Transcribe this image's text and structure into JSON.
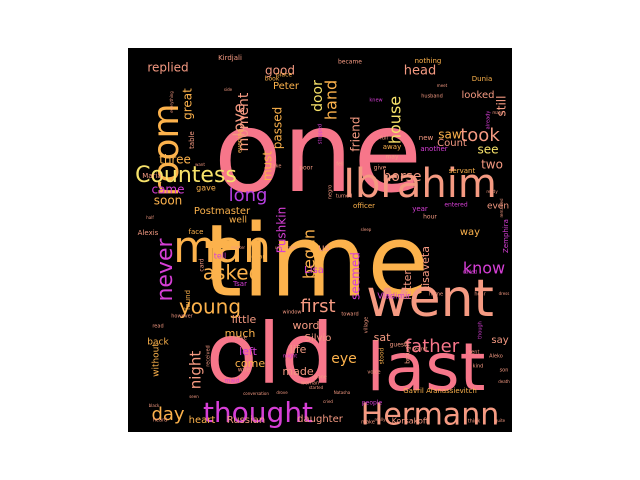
{
  "palette": {
    "background": "#ffffff",
    "panel": "#000000",
    "pink": "#f7768a",
    "orange": "#fcb24c",
    "magenta": "#d63fd6",
    "salmon": "#f59a82",
    "yellow": "#f7e26a",
    "violet": "#b63fe0"
  },
  "words": [
    {
      "text": "one",
      "weight": 100,
      "color": "pink"
    },
    {
      "text": "time",
      "weight": 98,
      "color": "orange"
    },
    {
      "text": "old",
      "weight": 80,
      "color": "pink"
    },
    {
      "text": "last",
      "weight": 62,
      "color": "pink"
    },
    {
      "text": "went",
      "weight": 52,
      "color": "salmon"
    },
    {
      "text": "Ibrahim",
      "weight": 42,
      "color": "salmon"
    },
    {
      "text": "man",
      "weight": 42,
      "color": "orange"
    },
    {
      "text": "Hermann",
      "weight": 34,
      "color": "salmon"
    },
    {
      "text": "room",
      "weight": 32,
      "color": "orange"
    },
    {
      "text": "thought",
      "weight": 28,
      "color": "magenta"
    },
    {
      "text": "Countess",
      "weight": 22,
      "color": "yellow"
    },
    {
      "text": "never",
      "weight": 20,
      "color": "magenta"
    },
    {
      "text": "asked",
      "weight": 20,
      "color": "orange"
    },
    {
      "text": "young",
      "weight": 20,
      "color": "orange"
    },
    {
      "text": "father",
      "weight": 18,
      "color": "pink"
    },
    {
      "text": "long",
      "weight": 18,
      "color": "violet"
    },
    {
      "text": "took",
      "weight": 18,
      "color": "salmon"
    },
    {
      "text": "know",
      "weight": 16,
      "color": "magenta"
    },
    {
      "text": "first",
      "weight": 18,
      "color": "salmon"
    },
    {
      "text": "day",
      "weight": 18,
      "color": "orange"
    },
    {
      "text": "night",
      "weight": 15,
      "color": "salmon"
    },
    {
      "text": "love",
      "weight": 16,
      "color": "salmon"
    },
    {
      "text": "hand",
      "weight": 16,
      "color": "orange"
    },
    {
      "text": "house",
      "weight": 16,
      "color": "yellow"
    },
    {
      "text": "began",
      "weight": 16,
      "color": "orange"
    },
    {
      "text": "moment",
      "weight": 14,
      "color": "salmon"
    },
    {
      "text": "door",
      "weight": 14,
      "color": "yellow"
    },
    {
      "text": "horse",
      "weight": 14,
      "color": "salmon"
    },
    {
      "text": "eye",
      "weight": 14,
      "color": "orange"
    },
    {
      "text": "head",
      "weight": 13,
      "color": "salmon"
    },
    {
      "text": "good",
      "weight": 12,
      "color": "salmon"
    },
    {
      "text": "replied",
      "weight": 12,
      "color": "salmon"
    },
    {
      "text": "great",
      "weight": 12,
      "color": "orange"
    },
    {
      "text": "three",
      "weight": 12,
      "color": "orange"
    },
    {
      "text": "came",
      "weight": 12,
      "color": "magenta"
    },
    {
      "text": "soon",
      "weight": 12,
      "color": "orange"
    },
    {
      "text": "Pushkin",
      "weight": 12,
      "color": "magenta"
    },
    {
      "text": "friend",
      "weight": 12,
      "color": "salmon"
    },
    {
      "text": "passed",
      "weight": 12,
      "color": "orange"
    },
    {
      "text": "must",
      "weight": 12,
      "color": "orange"
    },
    {
      "text": "saw",
      "weight": 12,
      "color": "orange"
    },
    {
      "text": "see",
      "weight": 12,
      "color": "yellow"
    },
    {
      "text": "two",
      "weight": 12,
      "color": "salmon"
    },
    {
      "text": "still",
      "weight": 12,
      "color": "salmon"
    },
    {
      "text": "seemed",
      "weight": 12,
      "color": "magenta"
    },
    {
      "text": "Lisaveta",
      "weight": 11,
      "color": "salmon"
    },
    {
      "text": "letter",
      "weight": 11,
      "color": "salmon"
    },
    {
      "text": "little",
      "weight": 11,
      "color": "salmon"
    },
    {
      "text": "much",
      "weight": 11,
      "color": "orange"
    },
    {
      "text": "word",
      "weight": 11,
      "color": "salmon"
    },
    {
      "text": "left",
      "weight": 11,
      "color": "magenta"
    },
    {
      "text": "life",
      "weight": 11,
      "color": "salmon"
    },
    {
      "text": "come",
      "weight": 11,
      "color": "orange"
    },
    {
      "text": "made",
      "weight": 11,
      "color": "salmon"
    },
    {
      "text": "sat",
      "weight": 11,
      "color": "salmon"
    },
    {
      "text": "say",
      "weight": 10,
      "color": "salmon"
    },
    {
      "text": "Lisa",
      "weight": 10,
      "color": "magenta"
    },
    {
      "text": "Silvio",
      "weight": 10,
      "color": "salmon"
    },
    {
      "text": "Count",
      "weight": 10,
      "color": "salmon"
    },
    {
      "text": "looked",
      "weight": 10,
      "color": "salmon"
    },
    {
      "text": "Peter",
      "weight": 10,
      "color": "orange"
    },
    {
      "text": "Postmaster",
      "weight": 10,
      "color": "orange"
    },
    {
      "text": "Russian",
      "weight": 10,
      "color": "salmon"
    },
    {
      "text": "daughter",
      "weight": 10,
      "color": "salmon"
    },
    {
      "text": "heart",
      "weight": 10,
      "color": "orange"
    },
    {
      "text": "way",
      "weight": 10,
      "color": "orange"
    },
    {
      "text": "us",
      "weight": 10,
      "color": "salmon"
    },
    {
      "text": "even",
      "weight": 9,
      "color": "salmon"
    },
    {
      "text": "without",
      "weight": 9,
      "color": "orange"
    },
    {
      "text": "well",
      "weight": 9,
      "color": "orange"
    },
    {
      "text": "back",
      "weight": 9,
      "color": "orange"
    },
    {
      "text": "Korsakoff",
      "weight": 8,
      "color": "salmon"
    },
    {
      "text": "Gavril Afanassievitch",
      "weight": 7,
      "color": "orange"
    },
    {
      "text": "Vladimir",
      "weight": 8,
      "color": "magenta"
    },
    {
      "text": "Dunia",
      "weight": 7,
      "color": "orange"
    },
    {
      "text": "Kirdjali",
      "weight": 7,
      "color": "salmon"
    },
    {
      "text": "Maria",
      "weight": 7,
      "color": "salmon"
    },
    {
      "text": "Alexis",
      "weight": 7,
      "color": "salmon"
    },
    {
      "text": "Zemphira",
      "weight": 7,
      "color": "magenta"
    },
    {
      "text": "Tsar",
      "weight": 7,
      "color": "magenta"
    },
    {
      "text": "tell",
      "weight": 8,
      "color": "magenta"
    },
    {
      "text": "gave",
      "weight": 8,
      "color": "orange"
    },
    {
      "text": "found",
      "weight": 7,
      "color": "orange"
    },
    {
      "text": "face",
      "weight": 7,
      "color": "orange"
    },
    {
      "text": "card",
      "weight": 6,
      "color": "salmon"
    },
    {
      "text": "dear",
      "weight": 6,
      "color": "orange"
    },
    {
      "text": "new",
      "weight": 7,
      "color": "salmon"
    },
    {
      "text": "another",
      "weight": 7,
      "color": "magenta"
    },
    {
      "text": "nothing",
      "weight": 7,
      "color": "orange"
    },
    {
      "text": "became",
      "weight": 6,
      "color": "salmon"
    },
    {
      "text": "place",
      "weight": 6,
      "color": "orange"
    },
    {
      "text": "book",
      "weight": 6,
      "color": "orange"
    },
    {
      "text": "evening",
      "weight": 6,
      "color": "orange"
    },
    {
      "text": "table",
      "weight": 7,
      "color": "salmon"
    },
    {
      "text": "away",
      "weight": 7,
      "color": "orange"
    },
    {
      "text": "may",
      "weight": 6,
      "color": "salmon"
    },
    {
      "text": "give",
      "weight": 6,
      "color": "salmon"
    },
    {
      "text": "officer",
      "weight": 7,
      "color": "orange"
    },
    {
      "text": "servant",
      "weight": 7,
      "color": "orange"
    },
    {
      "text": "year",
      "weight": 7,
      "color": "magenta"
    },
    {
      "text": "entered",
      "weight": 6,
      "color": "magenta"
    },
    {
      "text": "hour",
      "weight": 6,
      "color": "salmon"
    },
    {
      "text": "poor",
      "weight": 6,
      "color": "salmon"
    },
    {
      "text": "stood",
      "weight": 6,
      "color": "orange"
    },
    {
      "text": "brought",
      "weight": 6,
      "color": "salmon"
    },
    {
      "text": "guest",
      "weight": 6,
      "color": "salmon"
    },
    {
      "text": "wife",
      "weight": 6,
      "color": "salmon"
    },
    {
      "text": "maid",
      "weight": 6,
      "color": "magenta"
    },
    {
      "text": "woman",
      "weight": 5,
      "color": "salmon"
    },
    {
      "text": "voice",
      "weight": 5,
      "color": "salmon"
    },
    {
      "text": "alone",
      "weight": 5,
      "color": "salmon"
    },
    {
      "text": "might",
      "weight": 5,
      "color": "magenta"
    },
    {
      "text": "however",
      "weight": 5,
      "color": "salmon"
    },
    {
      "text": "read",
      "weight": 5,
      "color": "salmon"
    },
    {
      "text": "leave",
      "weight": 5,
      "color": "salmon"
    },
    {
      "text": "received",
      "weight": 5,
      "color": "salmon"
    },
    {
      "text": "window",
      "weight": 5,
      "color": "salmon"
    },
    {
      "text": "toward",
      "weight": 5,
      "color": "salmon"
    },
    {
      "text": "secret",
      "weight": 5,
      "color": "salmon"
    },
    {
      "text": "sent",
      "weight": 5,
      "color": "salmon"
    },
    {
      "text": "kind",
      "weight": 5,
      "color": "salmon"
    },
    {
      "text": "son",
      "weight": 5,
      "color": "salmon"
    },
    {
      "text": "Aleko",
      "weight": 5,
      "color": "salmon"
    },
    {
      "text": "home",
      "weight": 5,
      "color": "salmon"
    },
    {
      "text": "though",
      "weight": 5,
      "color": "magenta"
    },
    {
      "text": "called",
      "weight": 5,
      "color": "magenta"
    },
    {
      "text": "hear",
      "weight": 5,
      "color": "salmon"
    },
    {
      "text": "dress",
      "weight": 4,
      "color": "salmon"
    },
    {
      "text": "people",
      "weight": 6,
      "color": "magenta"
    },
    {
      "text": "make",
      "weight": 5,
      "color": "salmon"
    },
    {
      "text": "think",
      "weight": 5,
      "color": "salmon"
    },
    {
      "text": "quite",
      "weight": 4,
      "color": "salmon"
    },
    {
      "text": "heard",
      "weight": 5,
      "color": "salmon"
    },
    {
      "text": "seen",
      "weight": 4,
      "color": "salmon"
    },
    {
      "text": "husband",
      "weight": 5,
      "color": "salmon"
    },
    {
      "text": "already",
      "weight": 5,
      "color": "magenta"
    },
    {
      "text": "meet",
      "weight": 4,
      "color": "salmon"
    },
    {
      "text": "ready",
      "weight": 4,
      "color": "salmon"
    },
    {
      "text": "remained",
      "weight": 4,
      "color": "salmon"
    },
    {
      "text": "death",
      "weight": 4,
      "color": "salmon"
    },
    {
      "text": "black",
      "weight": 4,
      "color": "salmon"
    },
    {
      "text": "half",
      "weight": 4,
      "color": "salmon"
    },
    {
      "text": "want",
      "weight": 4,
      "color": "salmon"
    },
    {
      "text": "side",
      "weight": 4,
      "color": "salmon"
    },
    {
      "text": "take",
      "weight": 5,
      "color": "salmon"
    },
    {
      "text": "fell",
      "weight": 5,
      "color": "salmon"
    },
    {
      "text": "negro",
      "weight": 5,
      "color": "salmon"
    },
    {
      "text": "full",
      "weight": 5,
      "color": "salmon"
    },
    {
      "text": "village",
      "weight": 5,
      "color": "salmon"
    },
    {
      "text": "started",
      "weight": 4,
      "color": "salmon"
    },
    {
      "text": "drove",
      "weight": 4,
      "color": "salmon"
    },
    {
      "text": "cried",
      "weight": 4,
      "color": "salmon"
    },
    {
      "text": "Natasha",
      "weight": 4,
      "color": "salmon"
    },
    {
      "text": "master",
      "weight": 4,
      "color": "salmon"
    },
    {
      "text": "stopped",
      "weight": 5,
      "color": "magenta"
    },
    {
      "text": "turned",
      "weight": 5,
      "color": "salmon"
    },
    {
      "text": "knew",
      "weight": 5,
      "color": "magenta"
    },
    {
      "text": "many",
      "weight": 4,
      "color": "salmon"
    },
    {
      "text": "everything",
      "weight": 4,
      "color": "salmon"
    },
    {
      "text": "undertaker",
      "weight": 4,
      "color": "salmon"
    },
    {
      "text": "conversation",
      "weight": 4,
      "color": "salmon"
    },
    {
      "text": "sleep",
      "weight": 4,
      "color": "salmon"
    },
    {
      "text": "really",
      "weight": 4,
      "color": "salmon"
    }
  ]
}
